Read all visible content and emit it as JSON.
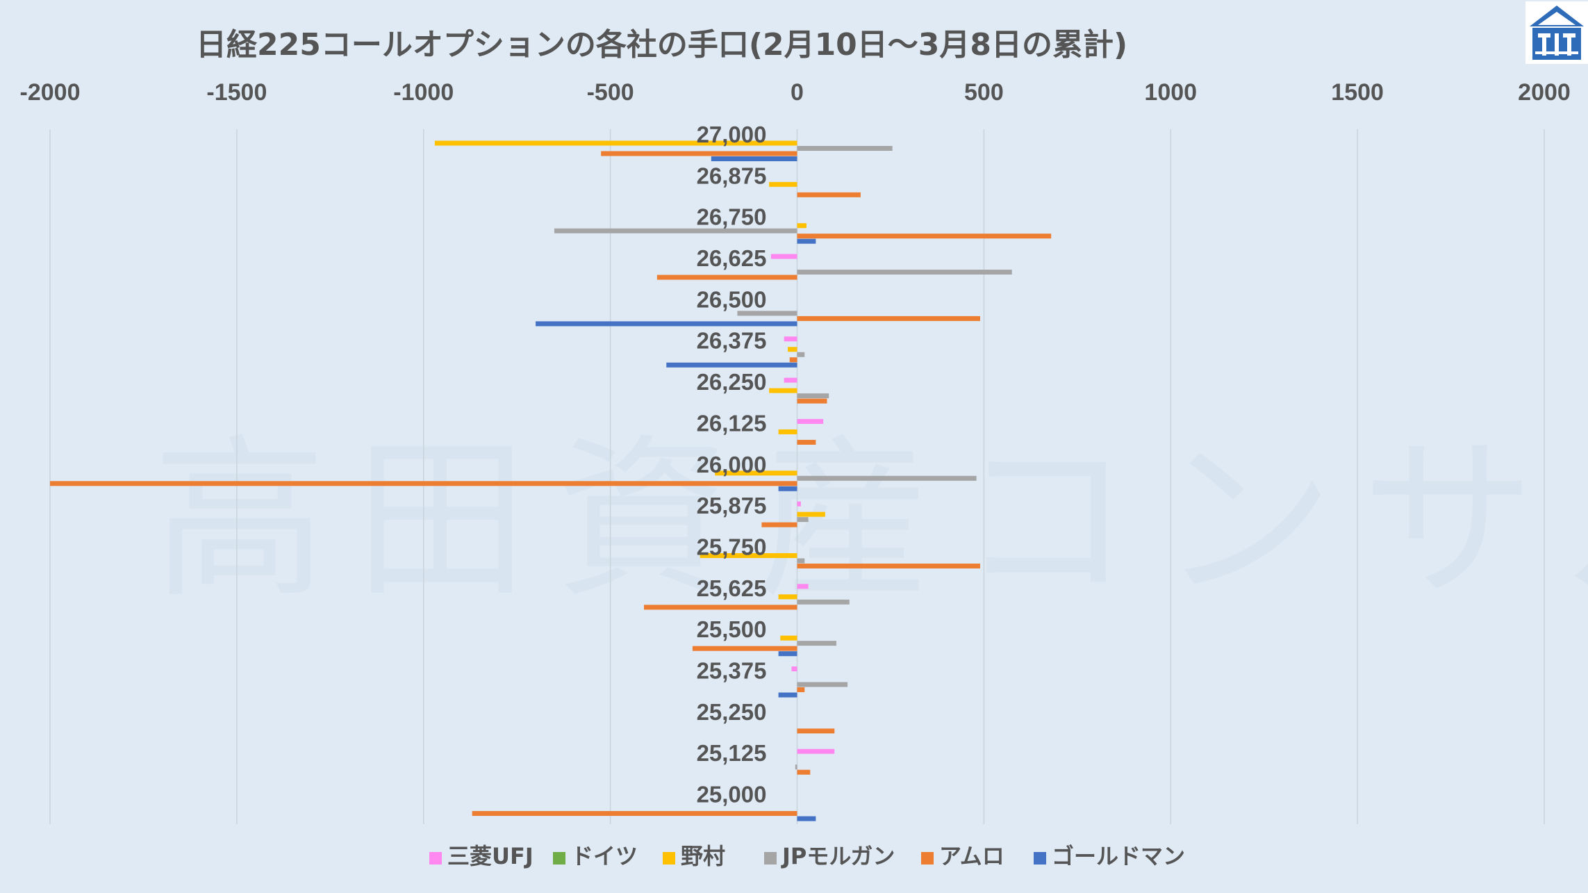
{
  "chart_data": {
    "type": "bar",
    "orientation": "horizontal",
    "title": "日経225コールオプションの各社の手口(2月10日～3月8日の累計)",
    "xlim": [
      -2000,
      2000
    ],
    "x_ticks": [
      "-2000",
      "-1500",
      "-1000",
      "-500",
      "0",
      "500",
      "1000",
      "1500",
      "2000"
    ],
    "categories": [
      "27,000",
      "26,875",
      "26,750",
      "26,625",
      "26,500",
      "26,375",
      "26,250",
      "26,125",
      "26,000",
      "25,875",
      "25,750",
      "25,625",
      "25,500",
      "25,375",
      "25,250",
      "25,125",
      "25,000"
    ],
    "grid": "vertical",
    "legend_position": "bottom",
    "series": [
      {
        "name": "三菱UFJ",
        "color": "#ff88f0",
        "values": [
          0,
          0,
          0,
          -70,
          0,
          -35,
          -35,
          70,
          0,
          10,
          0,
          30,
          0,
          -15,
          0,
          100,
          0
        ]
      },
      {
        "name": "ドイツ",
        "color": "#70ad47",
        "values": [
          0,
          0,
          0,
          0,
          0,
          0,
          0,
          0,
          0,
          0,
          0,
          0,
          0,
          0,
          0,
          0,
          0
        ]
      },
      {
        "name": "野村",
        "color": "#ffc000",
        "values": [
          -970,
          -75,
          25,
          0,
          0,
          -25,
          -75,
          -50,
          -220,
          75,
          -260,
          -50,
          -45,
          0,
          0,
          0,
          0
        ]
      },
      {
        "name": "JPモルガン",
        "color": "#a5a5a5",
        "values": [
          255,
          0,
          -650,
          575,
          -160,
          20,
          85,
          0,
          480,
          30,
          20,
          140,
          105,
          135,
          0,
          -5,
          0
        ]
      },
      {
        "name": "アムロ",
        "color": "#ed7d31",
        "values": [
          -525,
          170,
          680,
          -375,
          490,
          -20,
          80,
          50,
          -2000,
          -95,
          490,
          -410,
          -280,
          20,
          100,
          35,
          -870
        ]
      },
      {
        "name": "ゴールドマン",
        "color": "#4472c4",
        "values": [
          -230,
          0,
          50,
          0,
          -700,
          -350,
          0,
          0,
          -50,
          0,
          0,
          0,
          -50,
          -50,
          0,
          0,
          50
        ]
      }
    ]
  },
  "watermark": "高田資産コンサル"
}
